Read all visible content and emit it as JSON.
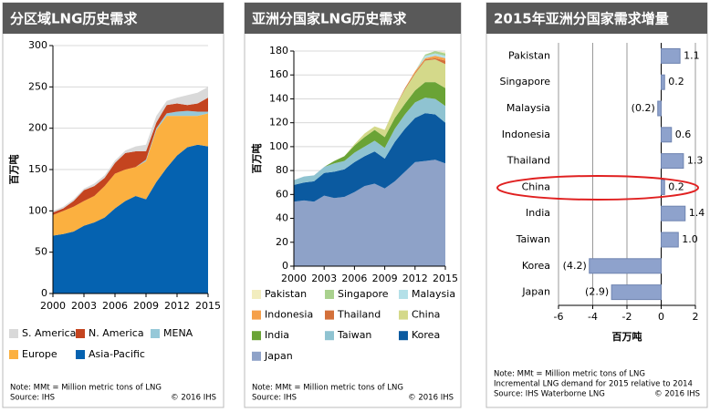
{
  "chart_data": [
    {
      "type": "stacked_area",
      "title": "分区域LNG历史需求",
      "ylabel": "百万吨",
      "x": [
        2000,
        2001,
        2002,
        2003,
        2004,
        2005,
        2006,
        2007,
        2008,
        2009,
        2010,
        2011,
        2012,
        2013,
        2014,
        2015
      ],
      "xlim": [
        2000,
        2015
      ],
      "xticks": [
        2000,
        2003,
        2006,
        2009,
        2012,
        2015
      ],
      "ylim": [
        0,
        300
      ],
      "yticks": [
        0,
        50,
        100,
        150,
        200,
        250,
        300
      ],
      "grid": true,
      "series": [
        {
          "name": "S. America",
          "color": "#d9d9d9",
          "values": [
            2,
            2,
            2,
            2,
            3,
            3,
            3,
            3,
            6,
            8,
            8,
            5,
            7,
            12,
            13,
            13
          ]
        },
        {
          "name": "N. America",
          "color": "#c4441f",
          "values": [
            3,
            3,
            7,
            13,
            12,
            10,
            13,
            20,
            19,
            10,
            7,
            10,
            10,
            7,
            10,
            17
          ]
        },
        {
          "name": "MENA",
          "color": "#96c8d8",
          "values": [
            0,
            0,
            0,
            0,
            0,
            0,
            0,
            0,
            0,
            2,
            2,
            3,
            5,
            6,
            5,
            2
          ]
        },
        {
          "name": "Europe",
          "color": "#fbb040",
          "values": [
            25,
            28,
            30,
            30,
            32,
            38,
            42,
            38,
            35,
            46,
            63,
            63,
            48,
            38,
            35,
            40
          ]
        },
        {
          "name": "Asia-Pacific",
          "color": "#0562b0",
          "values": [
            70,
            72,
            75,
            82,
            86,
            92,
            103,
            112,
            118,
            114,
            135,
            152,
            167,
            177,
            180,
            178
          ]
        }
      ],
      "notes": [
        "Note: MMt = Million metric tons of LNG",
        "Source: IHS"
      ],
      "copyright": "© 2016 IHS"
    },
    {
      "type": "stacked_area",
      "title": "亚洲分国家LNG历史需求",
      "ylabel": "百万吨",
      "x": [
        2000,
        2001,
        2002,
        2003,
        2004,
        2005,
        2006,
        2007,
        2008,
        2009,
        2010,
        2011,
        2012,
        2013,
        2014,
        2015
      ],
      "xlim": [
        2000,
        2015
      ],
      "xticks": [
        2000,
        2003,
        2006,
        2009,
        2012,
        2015
      ],
      "ylim": [
        0,
        180
      ],
      "yticks": [
        0,
        20,
        40,
        60,
        80,
        100,
        120,
        140,
        160,
        180
      ],
      "grid": true,
      "series": [
        {
          "name": "Pakistan",
          "color": "#f2edbf",
          "values": [
            0,
            0,
            0,
            0,
            0,
            0,
            0,
            0,
            0,
            0,
            0,
            0,
            0,
            0,
            0,
            1
          ]
        },
        {
          "name": "Singapore",
          "color": "#a9d18e",
          "values": [
            0,
            0,
            0,
            0,
            0,
            0,
            0,
            0,
            0,
            0,
            0,
            0,
            0,
            1,
            2,
            2
          ]
        },
        {
          "name": "Malaysia",
          "color": "#b4e0e8",
          "values": [
            0,
            0,
            0,
            0,
            0,
            0,
            0,
            0,
            0,
            0,
            0,
            0,
            0,
            2,
            2,
            2
          ]
        },
        {
          "name": "Indonesia",
          "color": "#f5a04a",
          "values": [
            0,
            0,
            0,
            0,
            0,
            0,
            0,
            0,
            0,
            0,
            0,
            0,
            1,
            1,
            2,
            2
          ]
        },
        {
          "name": "Thailand",
          "color": "#d3703a",
          "values": [
            0,
            0,
            0,
            0,
            0,
            0,
            0,
            0,
            0,
            0,
            0,
            1,
            1,
            1,
            1,
            3
          ]
        },
        {
          "name": "China",
          "color": "#d4d98a",
          "values": [
            0,
            0,
            0,
            0,
            0,
            0,
            1,
            3,
            3,
            6,
            9,
            12,
            14,
            18,
            19,
            20
          ]
        },
        {
          "name": "India",
          "color": "#6aa336",
          "values": [
            0,
            0,
            0,
            0,
            2,
            4,
            6,
            8,
            9,
            9,
            9,
            9,
            10,
            13,
            14,
            15
          ]
        },
        {
          "name": "Taiwan",
          "color": "#8fc3d1",
          "values": [
            4,
            5,
            5,
            5,
            7,
            7,
            8,
            8,
            9,
            9,
            11,
            12,
            13,
            13,
            13,
            14
          ]
        },
        {
          "name": "Korea",
          "color": "#0b5aa0",
          "values": [
            14,
            15,
            17,
            19,
            22,
            23,
            25,
            25,
            27,
            25,
            33,
            36,
            37,
            40,
            38,
            34
          ]
        },
        {
          "name": "Japan",
          "color": "#8ea2c8",
          "values": [
            54,
            55,
            54,
            59,
            57,
            58,
            62,
            67,
            69,
            65,
            71,
            79,
            87,
            88,
            89,
            86
          ]
        }
      ],
      "notes": [
        "Note: MMt = Million metric tons of LNG",
        "Source: IHS"
      ],
      "copyright": "© 2016 IHS"
    },
    {
      "type": "hbar",
      "title": "2015年亚洲分国家需求增量",
      "xlabel": "百万吨",
      "categories": [
        "Pakistan",
        "Singapore",
        "Malaysia",
        "Indonesia",
        "Thailand",
        "China",
        "India",
        "Taiwan",
        "Korea",
        "Japan"
      ],
      "values": [
        1.1,
        0.2,
        -0.2,
        0.6,
        1.3,
        0.2,
        1.4,
        1.0,
        -4.2,
        -2.9
      ],
      "value_labels": [
        "1.1",
        "0.2",
        "(0.2)",
        "0.6",
        "1.3",
        "0.2",
        "1.4",
        "1.0",
        "(4.2)",
        "(2.9)"
      ],
      "color": "#8ea2cc",
      "xlim": [
        -6,
        2
      ],
      "xticks": [
        -6,
        -4,
        -2,
        0,
        2
      ],
      "grid": true,
      "notes": [
        "Note: MMt = Million metric tons of LNG",
        "Incremental LNG demand for 2015 relative to 2014",
        "Source: IHS Waterborne LNG"
      ],
      "copyright": "© 2016 IHS"
    }
  ]
}
